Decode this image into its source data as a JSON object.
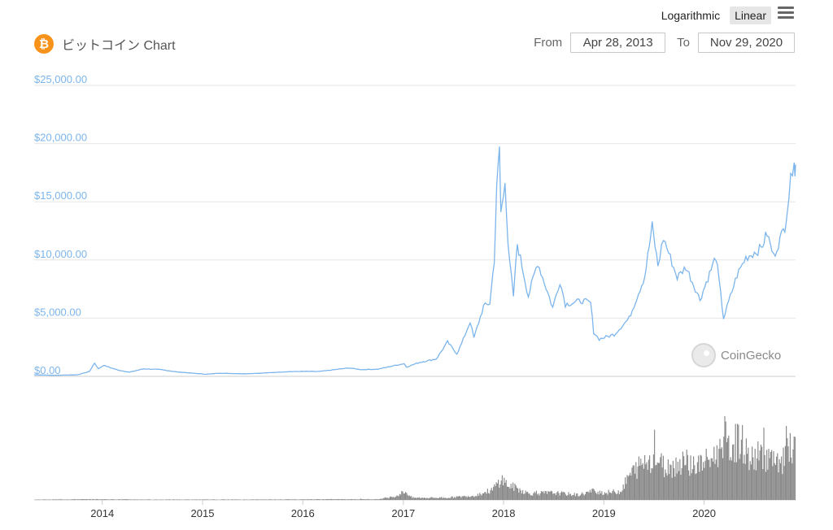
{
  "toolbar": {
    "logarithmic_label": "Logarithmic",
    "linear_label": "Linear",
    "menu_icon": "hamburger-menu-icon"
  },
  "header": {
    "coin_icon": "bitcoin-icon",
    "coin_symbol": "₿",
    "title": "ビットコイン Chart",
    "from_label": "From",
    "from_value": "Apr 28, 2013",
    "to_label": "To",
    "to_value": "Nov 29, 2020"
  },
  "watermark": {
    "icon": "coingecko-logo-icon",
    "text": "CoinGecko"
  },
  "colors": {
    "price_line": "#7cb5ec",
    "volume_bars": "#8c8c8c",
    "brand_orange": "#f7931a"
  },
  "chart_data": {
    "type": "line",
    "title": "ビットコイン Chart",
    "y_scale": "linear",
    "ylim": [
      0,
      25000
    ],
    "y_ticks": [
      "$0.00",
      "$5,000.00",
      "$10,000.00",
      "$15,000.00",
      "$20,000.00",
      "$25,000.00"
    ],
    "x_ticks": [
      "2014",
      "2015",
      "2016",
      "2017",
      "2018",
      "2019",
      "2020"
    ],
    "x_range": [
      "2013-04-28",
      "2020-11-29"
    ],
    "grid": "horizontal",
    "series": [
      {
        "kind": "price",
        "points": [
          [
            "2013-04-28",
            135
          ],
          [
            "2013-07-01",
            95
          ],
          [
            "2013-10-01",
            125
          ],
          [
            "2013-11-15",
            420
          ],
          [
            "2013-12-04",
            1150
          ],
          [
            "2013-12-18",
            650
          ],
          [
            "2014-01-05",
            950
          ],
          [
            "2014-02-25",
            550
          ],
          [
            "2014-04-10",
            360
          ],
          [
            "2014-06-01",
            650
          ],
          [
            "2014-08-01",
            580
          ],
          [
            "2014-10-01",
            380
          ],
          [
            "2015-01-14",
            180
          ],
          [
            "2015-03-01",
            270
          ],
          [
            "2015-06-01",
            225
          ],
          [
            "2015-08-01",
            270
          ],
          [
            "2015-11-04",
            400
          ],
          [
            "2016-01-01",
            430
          ],
          [
            "2016-03-01",
            420
          ],
          [
            "2016-06-17",
            720
          ],
          [
            "2016-08-01",
            580
          ],
          [
            "2016-10-01",
            620
          ],
          [
            "2017-01-04",
            1100
          ],
          [
            "2017-01-12",
            800
          ],
          [
            "2017-03-01",
            1200
          ],
          [
            "2017-05-01",
            1500
          ],
          [
            "2017-06-11",
            2950
          ],
          [
            "2017-07-15",
            1950
          ],
          [
            "2017-08-01",
            2800
          ],
          [
            "2017-09-01",
            4700
          ],
          [
            "2017-09-15",
            3300
          ],
          [
            "2017-10-20",
            6000
          ],
          [
            "2017-11-12",
            6300
          ],
          [
            "2017-11-28",
            10000
          ],
          [
            "2017-12-07",
            16000
          ],
          [
            "2017-12-17",
            19700
          ],
          [
            "2017-12-22",
            14000
          ],
          [
            "2018-01-06",
            17100
          ],
          [
            "2018-01-17",
            11000
          ],
          [
            "2018-02-06",
            6900
          ],
          [
            "2018-02-20",
            11400
          ],
          [
            "2018-04-01",
            6900
          ],
          [
            "2018-05-05",
            9800
          ],
          [
            "2018-06-29",
            5900
          ],
          [
            "2018-07-25",
            8200
          ],
          [
            "2018-08-14",
            6200
          ],
          [
            "2018-10-15",
            6500
          ],
          [
            "2018-11-14",
            6300
          ],
          [
            "2018-11-25",
            3800
          ],
          [
            "2018-12-15",
            3200
          ],
          [
            "2019-02-08",
            3600
          ],
          [
            "2019-04-03",
            5000
          ],
          [
            "2019-05-30",
            8600
          ],
          [
            "2019-06-26",
            12900
          ],
          [
            "2019-07-17",
            9500
          ],
          [
            "2019-08-06",
            11900
          ],
          [
            "2019-09-25",
            8500
          ],
          [
            "2019-10-27",
            9400
          ],
          [
            "2019-12-17",
            6600
          ],
          [
            "2020-02-13",
            10300
          ],
          [
            "2020-03-12",
            5000
          ],
          [
            "2020-04-30",
            8700
          ],
          [
            "2020-06-01",
            10200
          ],
          [
            "2020-07-27",
            11000
          ],
          [
            "2020-08-17",
            12300
          ],
          [
            "2020-09-10",
            10300
          ],
          [
            "2020-10-21",
            12900
          ],
          [
            "2020-11-05",
            15600
          ],
          [
            "2020-11-24",
            19100
          ],
          [
            "2020-11-27",
            17100
          ],
          [
            "2020-11-29",
            18200
          ]
        ]
      },
      {
        "kind": "volume",
        "points": [
          [
            "2013-04-28",
            0.005
          ],
          [
            "2013-12-01",
            0.01
          ],
          [
            "2014-06-01",
            0.006
          ],
          [
            "2015-06-01",
            0.006
          ],
          [
            "2016-06-01",
            0.01
          ],
          [
            "2016-10-01",
            0.01
          ],
          [
            "2016-12-01",
            0.05
          ],
          [
            "2017-01-05",
            0.12
          ],
          [
            "2017-02-01",
            0.03
          ],
          [
            "2017-06-01",
            0.03
          ],
          [
            "2017-09-15",
            0.06
          ],
          [
            "2017-11-20",
            0.14
          ],
          [
            "2017-12-22",
            0.3
          ],
          [
            "2018-01-17",
            0.2
          ],
          [
            "2018-02-06",
            0.18
          ],
          [
            "2018-04-01",
            0.09
          ],
          [
            "2018-07-01",
            0.1
          ],
          [
            "2018-10-01",
            0.07
          ],
          [
            "2018-11-25",
            0.13
          ],
          [
            "2019-01-01",
            0.1
          ],
          [
            "2019-03-01",
            0.12
          ],
          [
            "2019-04-03",
            0.35
          ],
          [
            "2019-05-15",
            0.5
          ],
          [
            "2019-06-26",
            0.6
          ],
          [
            "2019-07-15",
            0.55
          ],
          [
            "2019-08-15",
            0.45
          ],
          [
            "2019-09-25",
            0.5
          ],
          [
            "2019-10-26",
            0.55
          ],
          [
            "2019-12-01",
            0.48
          ],
          [
            "2020-01-15",
            0.55
          ],
          [
            "2020-02-20",
            0.65
          ],
          [
            "2020-03-12",
            0.95
          ],
          [
            "2020-03-25",
            0.7
          ],
          [
            "2020-05-10",
            0.85
          ],
          [
            "2020-06-15",
            0.55
          ],
          [
            "2020-07-27",
            0.65
          ],
          [
            "2020-09-01",
            0.55
          ],
          [
            "2020-10-10",
            0.45
          ],
          [
            "2020-10-21",
            0.82
          ],
          [
            "2020-11-05",
            0.6
          ],
          [
            "2020-11-24",
            0.7
          ],
          [
            "2020-11-29",
            0.6
          ]
        ]
      }
    ]
  }
}
